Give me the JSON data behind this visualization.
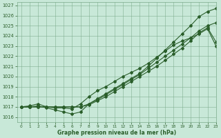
{
  "xlabel": "Graphe pression niveau de la mer (hPa)",
  "xlim": [
    -0.5,
    23
  ],
  "ylim": [
    1015.5,
    1027.3
  ],
  "yticks": [
    1016,
    1017,
    1018,
    1019,
    1020,
    1021,
    1022,
    1023,
    1024,
    1025,
    1026,
    1027
  ],
  "xticks": [
    0,
    1,
    2,
    3,
    4,
    5,
    6,
    7,
    8,
    9,
    10,
    11,
    12,
    13,
    14,
    15,
    16,
    17,
    18,
    19,
    20,
    21,
    22,
    23
  ],
  "bg_color": "#c8e8d8",
  "line_color": "#2a5e2a",
  "line1_y": [
    1017.0,
    1017.0,
    1017.1,
    1016.9,
    1016.7,
    1016.5,
    1016.3,
    1016.5,
    1017.3,
    1017.8,
    1018.3,
    1018.8,
    1019.3,
    1019.8,
    1020.3,
    1021.0,
    1021.8,
    1022.6,
    1023.4,
    1024.2,
    1025.0,
    1025.9,
    1026.4,
    1026.7
  ],
  "line2_y": [
    1017.0,
    1017.0,
    1017.0,
    1017.0,
    1017.0,
    1017.0,
    1017.0,
    1017.0,
    1017.3,
    1017.7,
    1018.2,
    1018.7,
    1019.2,
    1019.7,
    1020.2,
    1020.8,
    1021.4,
    1022.0,
    1022.6,
    1023.2,
    1023.8,
    1024.5,
    1025.0,
    1025.3
  ],
  "line3_y": [
    1017.0,
    1017.0,
    1017.0,
    1017.0,
    1017.0,
    1017.0,
    1017.0,
    1017.0,
    1017.2,
    1017.6,
    1018.0,
    1018.5,
    1019.0,
    1019.5,
    1020.0,
    1020.5,
    1021.0,
    1021.6,
    1022.2,
    1022.8,
    1023.5,
    1024.3,
    1024.8,
    1023.4
  ],
  "line4_y": [
    1017.0,
    1017.1,
    1017.3,
    1017.0,
    1016.9,
    1016.9,
    1016.8,
    1017.3,
    1018.0,
    1018.6,
    1019.0,
    1019.5,
    1020.0,
    1020.4,
    1020.8,
    1021.3,
    1021.9,
    1022.5,
    1023.1,
    1023.5,
    1023.8,
    1024.2,
    1024.7,
    1023.0
  ]
}
